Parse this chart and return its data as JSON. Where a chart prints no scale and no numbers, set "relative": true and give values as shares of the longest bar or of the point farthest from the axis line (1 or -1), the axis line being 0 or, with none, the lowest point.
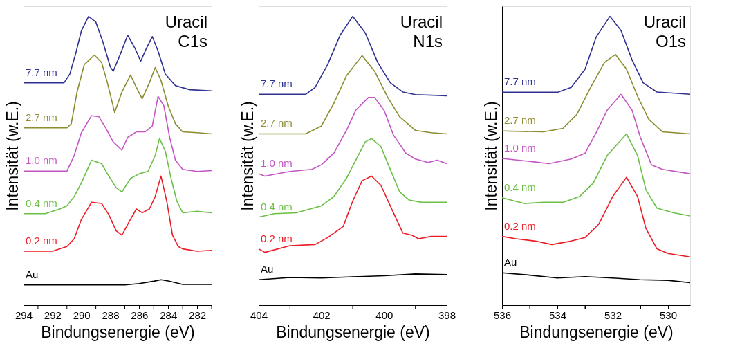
{
  "chart_data": [
    {
      "type": "line",
      "relative": true,
      "tick_labels": "x",
      "xlabel": "Bindungsenergie (eV)",
      "ylabel": "Intensität (w.E.)",
      "annotations": [
        "Uracil C1s"
      ],
      "xlim": [
        294,
        281
      ],
      "xticks": [
        294,
        {
          "value": 293,
          "label": null
        },
        292,
        {
          "value": 291,
          "label": null
        },
        290,
        {
          "value": 289,
          "label": null
        },
        288,
        {
          "value": 287,
          "label": null
        },
        286,
        {
          "value": 285,
          "label": null
        },
        284,
        {
          "value": 283,
          "label": null
        },
        282,
        {
          "value": 281,
          "label": null
        }
      ],
      "series": [
        {
          "name": "7.7 nm",
          "color": "#2e3192",
          "x": [
            294,
            293,
            292,
            291.2,
            290.8,
            290.4,
            290,
            289.5,
            289,
            288.5,
            288,
            287.8,
            287.3,
            286.8,
            286.3,
            285.9,
            285.5,
            285.1,
            284.7,
            284.2,
            283.5,
            282.5,
            281
          ],
          "values": [
            0.77,
            0.77,
            0.77,
            0.77,
            0.8,
            0.87,
            0.95,
            1.0,
            0.98,
            0.91,
            0.825,
            0.81,
            0.87,
            0.935,
            0.89,
            0.845,
            0.89,
            0.93,
            0.88,
            0.8,
            0.76,
            0.746,
            0.742
          ]
        },
        {
          "name": "2.7 nm",
          "color": "#8c8c30",
          "x": [
            294,
            293,
            292,
            291,
            290.7,
            290.3,
            289.8,
            289.1,
            288.6,
            288.2,
            287.7,
            287.2,
            286.6,
            286.2,
            285.8,
            285.3,
            284.9,
            284.5,
            284,
            283.5,
            283,
            282,
            281
          ],
          "values": [
            0.614,
            0.614,
            0.614,
            0.614,
            0.628,
            0.738,
            0.833,
            0.866,
            0.84,
            0.77,
            0.667,
            0.738,
            0.797,
            0.754,
            0.715,
            0.77,
            0.823,
            0.778,
            0.69,
            0.628,
            0.6,
            0.597,
            0.593
          ]
        },
        {
          "name": "1.0 nm",
          "color": "#c454c4",
          "x": [
            294,
            293,
            292,
            291,
            290.5,
            290,
            289.3,
            288.8,
            288.3,
            287.8,
            287.2,
            286.8,
            286.2,
            285.6,
            285.1,
            284.7,
            284.3,
            283.9,
            283.5,
            283,
            282,
            281
          ],
          "values": [
            0.464,
            0.464,
            0.464,
            0.464,
            0.518,
            0.597,
            0.656,
            0.653,
            0.612,
            0.565,
            0.537,
            0.581,
            0.6,
            0.6,
            0.62,
            0.723,
            0.69,
            0.581,
            0.502,
            0.47,
            0.463,
            0.466
          ]
        },
        {
          "name": "0.4 nm",
          "color": "#6abf45",
          "x": [
            294,
            293,
            292.5,
            291.5,
            291,
            290.5,
            290,
            289.3,
            288.6,
            288.2,
            287.6,
            287.2,
            286.6,
            286,
            285.4,
            284.9,
            284.6,
            284.2,
            283.8,
            283.4,
            283,
            282,
            281
          ],
          "values": [
            0.317,
            0.317,
            0.317,
            0.333,
            0.344,
            0.376,
            0.423,
            0.502,
            0.49,
            0.455,
            0.407,
            0.392,
            0.439,
            0.455,
            0.463,
            0.518,
            0.577,
            0.533,
            0.439,
            0.36,
            0.32,
            0.325,
            0.32
          ]
        },
        {
          "name": "0.2 nm",
          "color": "#ed1c24",
          "x": [
            294,
            293,
            292,
            291,
            290.5,
            290,
            289.3,
            288.6,
            288.1,
            287.6,
            287.2,
            286.7,
            286.2,
            285.8,
            285.3,
            284.9,
            284.5,
            284.1,
            283.7,
            283.3,
            283,
            282,
            281
          ],
          "values": [
            0.187,
            0.187,
            0.187,
            0.203,
            0.23,
            0.297,
            0.356,
            0.352,
            0.313,
            0.258,
            0.242,
            0.289,
            0.333,
            0.32,
            0.333,
            0.376,
            0.447,
            0.36,
            0.242,
            0.203,
            0.195,
            0.187,
            0.19
          ]
        },
        {
          "name": "Au",
          "color": "#000000",
          "x": [
            294,
            292,
            290,
            288,
            287,
            286,
            285,
            284.5,
            284,
            283,
            281
          ],
          "values": [
            0.07,
            0.07,
            0.07,
            0.07,
            0.07,
            0.075,
            0.083,
            0.088,
            0.084,
            0.072,
            0.072
          ]
        }
      ]
    },
    {
      "type": "line",
      "relative": true,
      "tick_labels": "x",
      "xlabel": "Bindungsenergie (eV)",
      "ylabel": "Intensität (w.E.)",
      "annotations": [
        "Uracil N1s"
      ],
      "xlim": [
        404,
        398
      ],
      "xticks": [
        404,
        {
          "value": 403,
          "label": null
        },
        402,
        {
          "value": 401,
          "label": null
        },
        400,
        {
          "value": 399,
          "label": null
        },
        398
      ],
      "series": [
        {
          "name": "7.7 nm",
          "color": "#2e3192",
          "x": [
            404,
            403,
            402.5,
            402.2,
            401.8,
            401.4,
            401,
            400.6,
            400.2,
            399.8,
            399.4,
            399,
            398
          ],
          "values": [
            0.73,
            0.73,
            0.73,
            0.754,
            0.833,
            0.935,
            1.0,
            0.943,
            0.84,
            0.77,
            0.738,
            0.729,
            0.725
          ]
        },
        {
          "name": "2.7 nm",
          "color": "#8c8c30",
          "x": [
            404,
            403,
            402.5,
            402,
            401.6,
            401.2,
            400.7,
            400.3,
            399.9,
            399.5,
            399,
            398.5,
            398
          ],
          "values": [
            0.593,
            0.593,
            0.593,
            0.62,
            0.699,
            0.794,
            0.864,
            0.81,
            0.723,
            0.652,
            0.605,
            0.597,
            0.593
          ]
        },
        {
          "name": "1.0 nm",
          "color": "#c454c4",
          "x": [
            404,
            403.8,
            403,
            402.3,
            402,
            401.6,
            401.2,
            400.9,
            400.5,
            400.3,
            400,
            399.7,
            399.3,
            399,
            398.6,
            398.3,
            398
          ],
          "values": [
            0.455,
            0.447,
            0.463,
            0.47,
            0.486,
            0.526,
            0.605,
            0.675,
            0.719,
            0.719,
            0.675,
            0.589,
            0.526,
            0.506,
            0.494,
            0.502,
            0.49
          ]
        },
        {
          "name": "0.4 nm",
          "color": "#6abf45",
          "x": [
            404,
            403.5,
            402.8,
            402,
            401.6,
            401.2,
            400.9,
            400.6,
            400.4,
            400.1,
            399.8,
            399.5,
            399.2,
            398.8,
            398
          ],
          "values": [
            0.305,
            0.317,
            0.32,
            0.344,
            0.376,
            0.439,
            0.502,
            0.565,
            0.577,
            0.549,
            0.47,
            0.392,
            0.364,
            0.356,
            0.356
          ]
        },
        {
          "name": "0.2 nm",
          "color": "#ed1c24",
          "x": [
            404,
            403.8,
            403,
            402.2,
            401.8,
            401.3,
            401,
            400.7,
            400.4,
            400.1,
            399.7,
            399.4,
            399.1,
            398.9,
            398.5,
            398
          ],
          "values": [
            0.195,
            0.183,
            0.206,
            0.21,
            0.234,
            0.273,
            0.36,
            0.431,
            0.447,
            0.415,
            0.32,
            0.25,
            0.242,
            0.23,
            0.238,
            0.238
          ]
        },
        {
          "name": "Au",
          "color": "#000000",
          "x": [
            404,
            403,
            402,
            400.8,
            400,
            399,
            398
          ],
          "values": [
            0.088,
            0.096,
            0.094,
            0.099,
            0.102,
            0.108,
            0.106
          ]
        }
      ]
    },
    {
      "type": "line",
      "relative": true,
      "tick_labels": "x",
      "xlabel": "Bindungsenergie (eV)",
      "ylabel": "Intensität (w.E.)",
      "annotations": [
        "Uracil O1s"
      ],
      "xlim": [
        536,
        529.2
      ],
      "xticks": [
        536,
        {
          "value": 535,
          "label": null
        },
        534,
        {
          "value": 533,
          "label": null
        },
        532,
        {
          "value": 531,
          "label": null
        },
        530
      ],
      "series": [
        {
          "name": "7.7 nm",
          "color": "#2e3192",
          "x": [
            536,
            535,
            534,
            533.5,
            533,
            532.6,
            532.1,
            531.7,
            531.3,
            530.9,
            530.4,
            529.2
          ],
          "values": [
            0.737,
            0.737,
            0.737,
            0.754,
            0.817,
            0.928,
            1.0,
            0.951,
            0.849,
            0.77,
            0.738,
            0.73
          ]
        },
        {
          "name": "2.7 nm",
          "color": "#8c8c30",
          "x": [
            536,
            534.5,
            533.8,
            533.3,
            532.8,
            532.3,
            531.9,
            531.5,
            531.1,
            530.7,
            530.2,
            529.2
          ],
          "values": [
            0.603,
            0.6,
            0.612,
            0.66,
            0.754,
            0.84,
            0.868,
            0.817,
            0.723,
            0.644,
            0.6,
            0.593
          ]
        },
        {
          "name": "1.0 nm",
          "color": "#c454c4",
          "x": [
            536,
            535,
            534.3,
            533.5,
            533,
            532.6,
            532.2,
            531.7,
            531.3,
            531,
            530.6,
            530.2,
            529.2
          ],
          "values": [
            0.508,
            0.498,
            0.49,
            0.506,
            0.526,
            0.597,
            0.675,
            0.73,
            0.675,
            0.581,
            0.486,
            0.47,
            0.455
          ]
        },
        {
          "name": "0.4 nm",
          "color": "#6abf45",
          "x": [
            536,
            535.2,
            534.5,
            533.8,
            533.2,
            532.7,
            532.2,
            531.5,
            531.1,
            530.8,
            530.4,
            529.8,
            529.2
          ],
          "values": [
            0.372,
            0.352,
            0.356,
            0.356,
            0.376,
            0.423,
            0.518,
            0.593,
            0.518,
            0.4,
            0.336,
            0.32,
            0.309
          ]
        },
        {
          "name": "0.2 nm",
          "color": "#ed1c24",
          "x": [
            536,
            535.5,
            534.8,
            534.2,
            533.5,
            533,
            532.5,
            532,
            531.5,
            531.1,
            530.8,
            530.4,
            530,
            529.2
          ],
          "values": [
            0.238,
            0.23,
            0.222,
            0.21,
            0.222,
            0.234,
            0.281,
            0.376,
            0.443,
            0.376,
            0.266,
            0.195,
            0.179,
            0.167
          ]
        },
        {
          "name": "Au",
          "color": "#000000",
          "x": [
            536,
            535,
            534,
            533,
            532,
            531,
            530,
            529.2
          ],
          "values": [
            0.112,
            0.104,
            0.094,
            0.099,
            0.094,
            0.088,
            0.086,
            0.078
          ]
        }
      ]
    }
  ]
}
